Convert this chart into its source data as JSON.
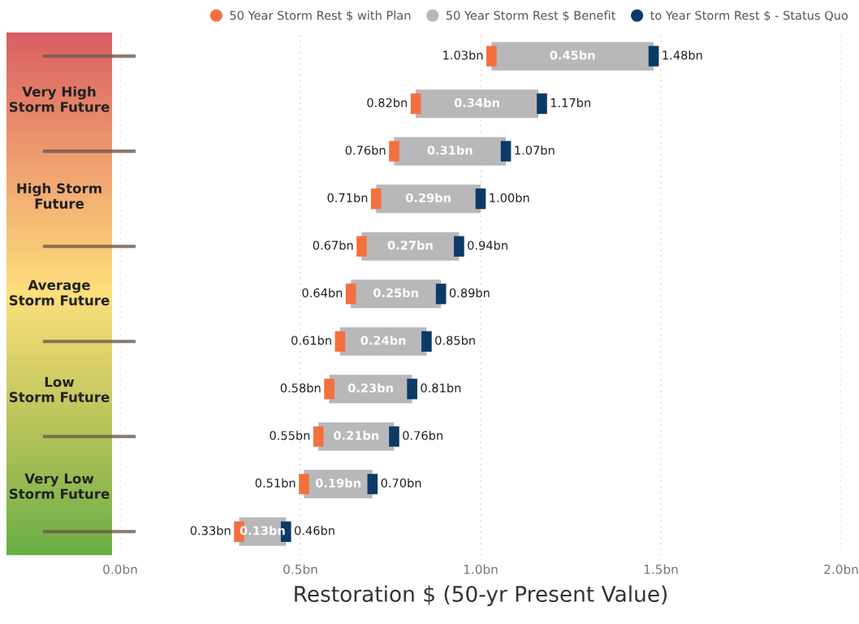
{
  "chart_data": {
    "type": "bar",
    "orientation": "horizontal",
    "categories": [
      null,
      null,
      null,
      null,
      null,
      null,
      null,
      null,
      null,
      null,
      null
    ],
    "series": [
      {
        "name": "50 Year Storm Rest $ with Plan",
        "type": "scatter",
        "color": "#f4703e",
        "values": [
          1.03,
          0.82,
          0.76,
          0.71,
          0.67,
          0.64,
          0.61,
          0.58,
          0.55,
          0.51,
          0.33
        ],
        "value_labels": [
          "1.03bn",
          "0.82bn",
          "0.76bn",
          "0.71bn",
          "0.67bn",
          "0.64bn",
          "0.61bn",
          "0.58bn",
          "0.55bn",
          "0.51bn",
          "0.33bn"
        ]
      },
      {
        "name": "50 Year Storm Rest $ Benefit",
        "color": "#b8b8ba",
        "base": [
          1.03,
          0.82,
          0.76,
          0.71,
          0.67,
          0.64,
          0.61,
          0.58,
          0.55,
          0.51,
          0.33
        ],
        "values": [
          0.45,
          0.34,
          0.31,
          0.29,
          0.27,
          0.25,
          0.24,
          0.23,
          0.21,
          0.19,
          0.13
        ],
        "value_labels": [
          "0.45bn",
          "0.34bn",
          "0.31bn",
          "0.29bn",
          "0.27bn",
          "0.25bn",
          "0.24bn",
          "0.23bn",
          "0.21bn",
          "0.19bn",
          "0.13bn"
        ]
      },
      {
        "name": "to Year Storm Rest $ - Status Quo",
        "type": "scatter",
        "color": "#0c3a66",
        "values": [
          1.48,
          1.17,
          1.07,
          1.0,
          0.94,
          0.89,
          0.85,
          0.81,
          0.76,
          0.7,
          0.46
        ],
        "value_labels": [
          "1.48bn",
          "1.17bn",
          "1.07bn",
          "1.00bn",
          "0.94bn",
          "0.89bn",
          "0.85bn",
          "0.81bn",
          "0.76bn",
          "0.70bn",
          "0.46bn"
        ]
      }
    ],
    "xlim": [
      0,
      2.0
    ],
    "xticks": [
      {
        "value": 0,
        "label": "0.0bn"
      },
      {
        "value": 0.5,
        "label": "0.5bn"
      },
      {
        "value": 1.0,
        "label": "1.0bn"
      },
      {
        "value": 1.5,
        "label": "1.5bn"
      },
      {
        "value": 2.0,
        "label": "2.0bn"
      }
    ],
    "xlabel": "Restoration $ (50-yr Present Value)",
    "grid": "x",
    "legend": "top",
    "annotations": [
      "Very High\nStorm Future",
      "High Storm\nFuture",
      "Average\nStorm Future",
      "Low\nStorm Future",
      "Very Low\nStorm Future"
    ]
  }
}
